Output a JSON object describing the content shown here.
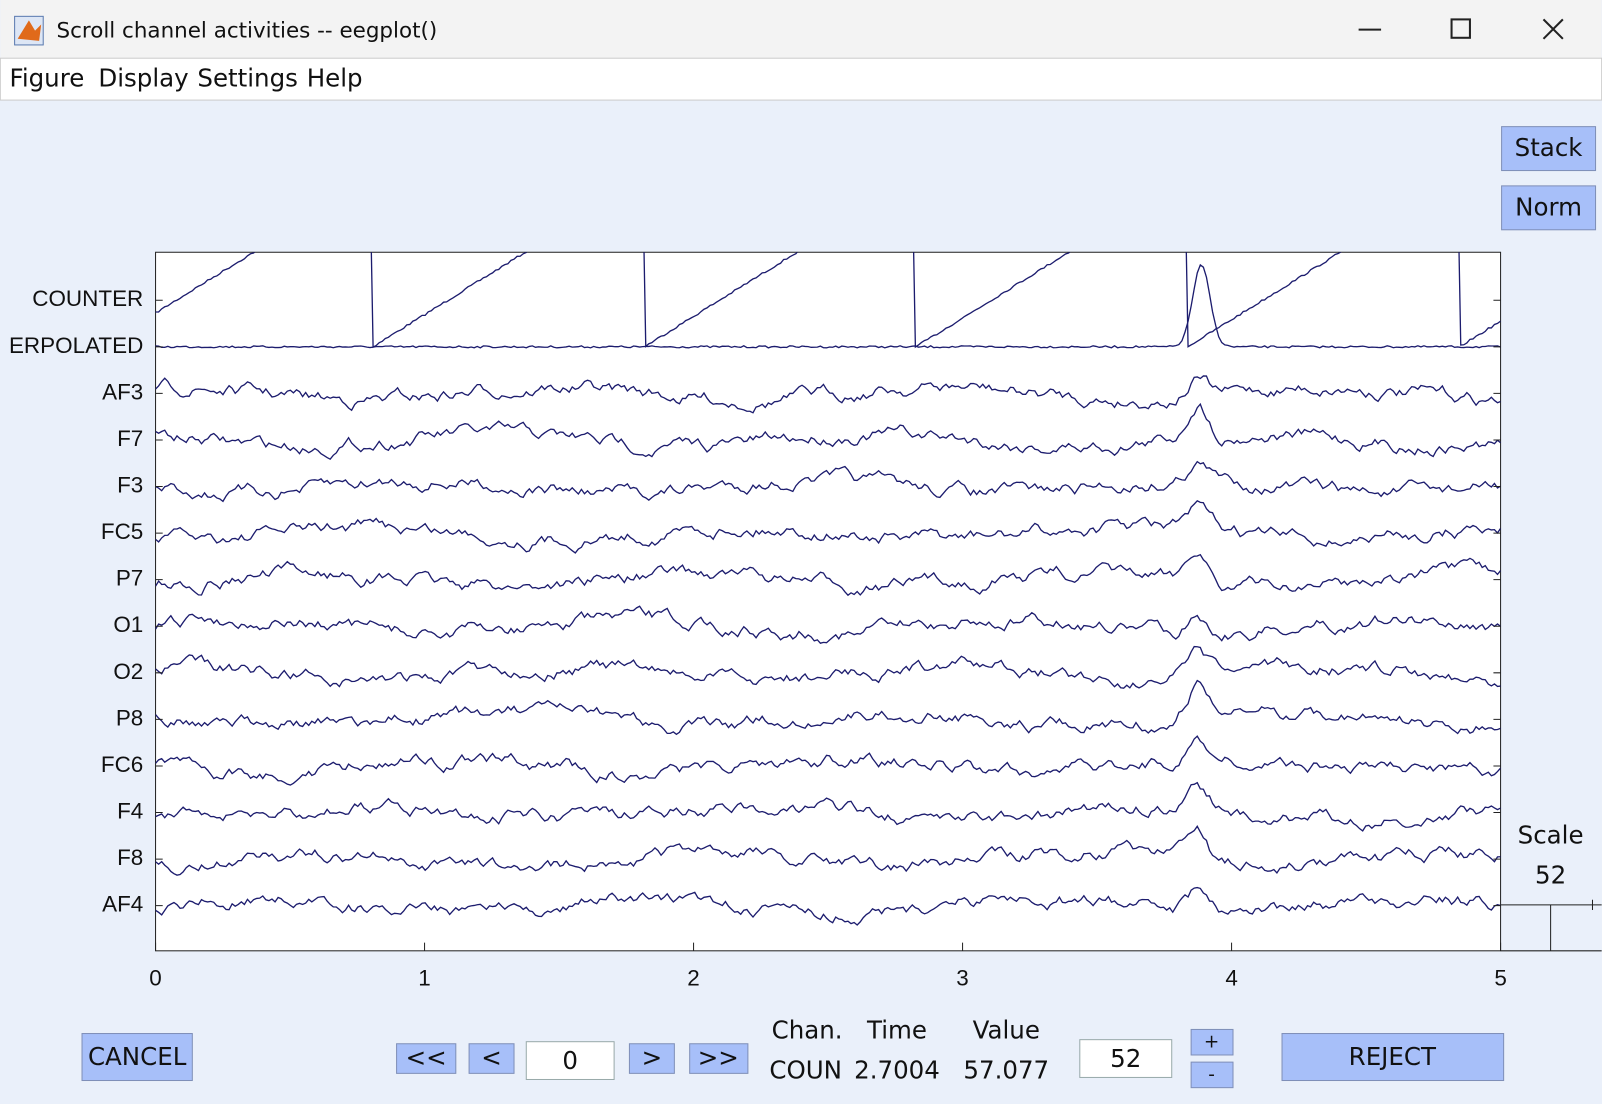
{
  "window": {
    "title": "Scroll channel activities -- eegplot()"
  },
  "menu": [
    "Figure",
    "Display",
    "Settings",
    "Help"
  ],
  "side_buttons": {
    "stack": "Stack",
    "norm": "Norm"
  },
  "chart_data": {
    "type": "eeg",
    "channels": [
      "COUNTER",
      "ERPOLATED",
      "AF3",
      "F7",
      "F3",
      "FC5",
      "P7",
      "O1",
      "O2",
      "P8",
      "FC6",
      "F4",
      "F8",
      "AF4"
    ],
    "xlim": [
      0,
      5
    ],
    "xticks": [
      0,
      1,
      2,
      3,
      4,
      5
    ]
  },
  "scale": {
    "label": "Scale",
    "value": "52"
  },
  "controls": {
    "cancel": "CANCEL",
    "first": "<<",
    "prev": "<",
    "position": "0",
    "next": ">",
    "last": ">>",
    "info_headers": [
      "Chan.",
      "Time",
      "Value"
    ],
    "info_values": [
      "COUN",
      "2.7004",
      "57.077"
    ],
    "scale_input": "52",
    "plus": "+",
    "minus": "-",
    "reject": "REJECT"
  }
}
